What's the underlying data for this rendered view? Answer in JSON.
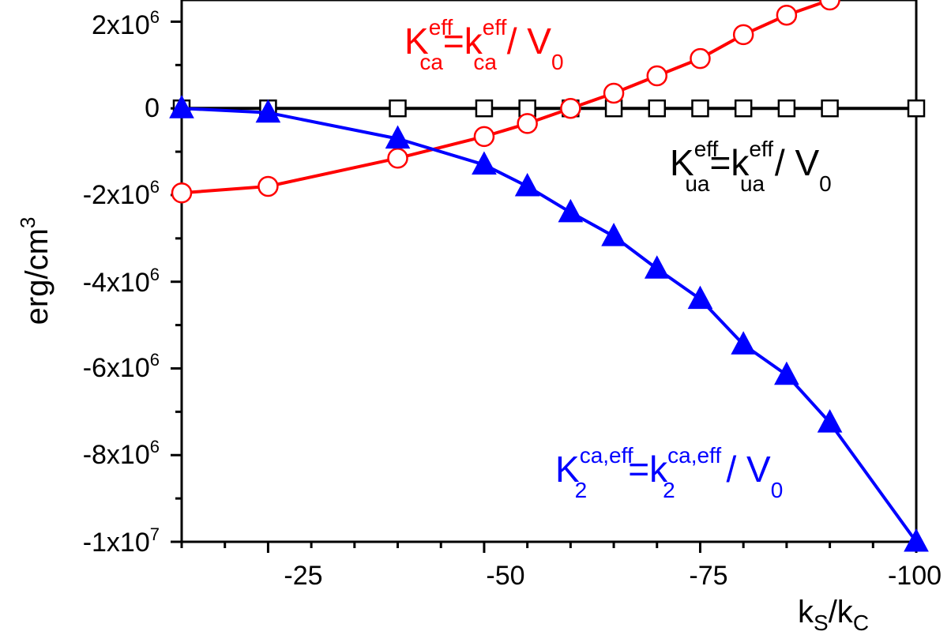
{
  "chart_data": {
    "type": "line",
    "title": "",
    "xlabel": "kS/kC",
    "ylabel": "erg/cm3",
    "xlim": [
      -15,
      -100
    ],
    "ylim": [
      -10000000,
      2500000
    ],
    "grid": false,
    "x_ticks": [
      {
        "value": -25,
        "label": "-25"
      },
      {
        "value": -50,
        "label": "-50"
      },
      {
        "value": -75,
        "label": "-75"
      },
      {
        "value": -100,
        "label": "-100"
      }
    ],
    "y_ticks": [
      {
        "value": 2000000,
        "mant": "2x10",
        "exp": "6"
      },
      {
        "value": 0,
        "mant": "0",
        "exp": ""
      },
      {
        "value": -2000000,
        "mant": "-2x10",
        "exp": "6"
      },
      {
        "value": -4000000,
        "mant": "-4x10",
        "exp": "6"
      },
      {
        "value": -6000000,
        "mant": "-6x10",
        "exp": "6"
      },
      {
        "value": -8000000,
        "mant": "-8x10",
        "exp": "6"
      },
      {
        "value": -10000000,
        "mant": "-1x10",
        "exp": "7"
      }
    ],
    "series": [
      {
        "name": "K_ua^eff = k_ua^eff / V_0",
        "color": "#000000",
        "marker": "open-square",
        "x": [
          -15,
          -25,
          -40,
          -50,
          -55,
          -60,
          -65,
          -70,
          -75,
          -80,
          -85,
          -90,
          -100
        ],
        "y": [
          0,
          0,
          0,
          0,
          0,
          0,
          0,
          0,
          0,
          0,
          0,
          0,
          0
        ]
      },
      {
        "name": "K_ca^eff = k_ca^eff / V_0",
        "color": "#ff0000",
        "marker": "open-circle",
        "x": [
          -15,
          -25,
          -40,
          -50,
          -55,
          -60,
          -65,
          -70,
          -75,
          -80,
          -85,
          -90
        ],
        "y": [
          -1950000,
          -1800000,
          -1150000,
          -650000,
          -350000,
          0,
          350000,
          750000,
          1150000,
          1700000,
          2150000,
          2500000
        ]
      },
      {
        "name": "K_2^ca,eff = k_2^ca,eff / V_0",
        "color": "#0000ff",
        "marker": "filled-triangle",
        "x": [
          -15,
          -25,
          -40,
          -50,
          -55,
          -60,
          -65,
          -70,
          -75,
          -80,
          -85,
          -90,
          -100
        ],
        "y": [
          0,
          -100000,
          -700000,
          -1300000,
          -1800000,
          -2400000,
          -2950000,
          -3700000,
          -4400000,
          -5450000,
          -6150000,
          -7250000,
          -10000000
        ]
      }
    ]
  },
  "labels": {
    "ylabel_main": "erg/cm",
    "ylabel_sup": "3",
    "xlabel_k1": "k",
    "xlabel_s": "S",
    "xlabel_slash": "/k",
    "xlabel_c": "C"
  },
  "annotations": {
    "ca": {
      "K": "K",
      "sup1": "eff",
      "sub1": "ca",
      "eq": "=k",
      "sup2": "eff",
      "sub2": "ca",
      "tail": " / V",
      "sub3": "0"
    },
    "ua": {
      "K": "K",
      "sup1": "eff",
      "sub1": "ua",
      "eq": "=k",
      "sup2": "eff",
      "sub2": "ua",
      "tail": " / V",
      "sub3": "0"
    },
    "k2": {
      "K": "K",
      "sup1": "ca,eff",
      "sub1": "2",
      "eq": "=k",
      "sup2": "ca,eff",
      "sub2": "2",
      "tail": " / V",
      "sub3": "0"
    }
  }
}
